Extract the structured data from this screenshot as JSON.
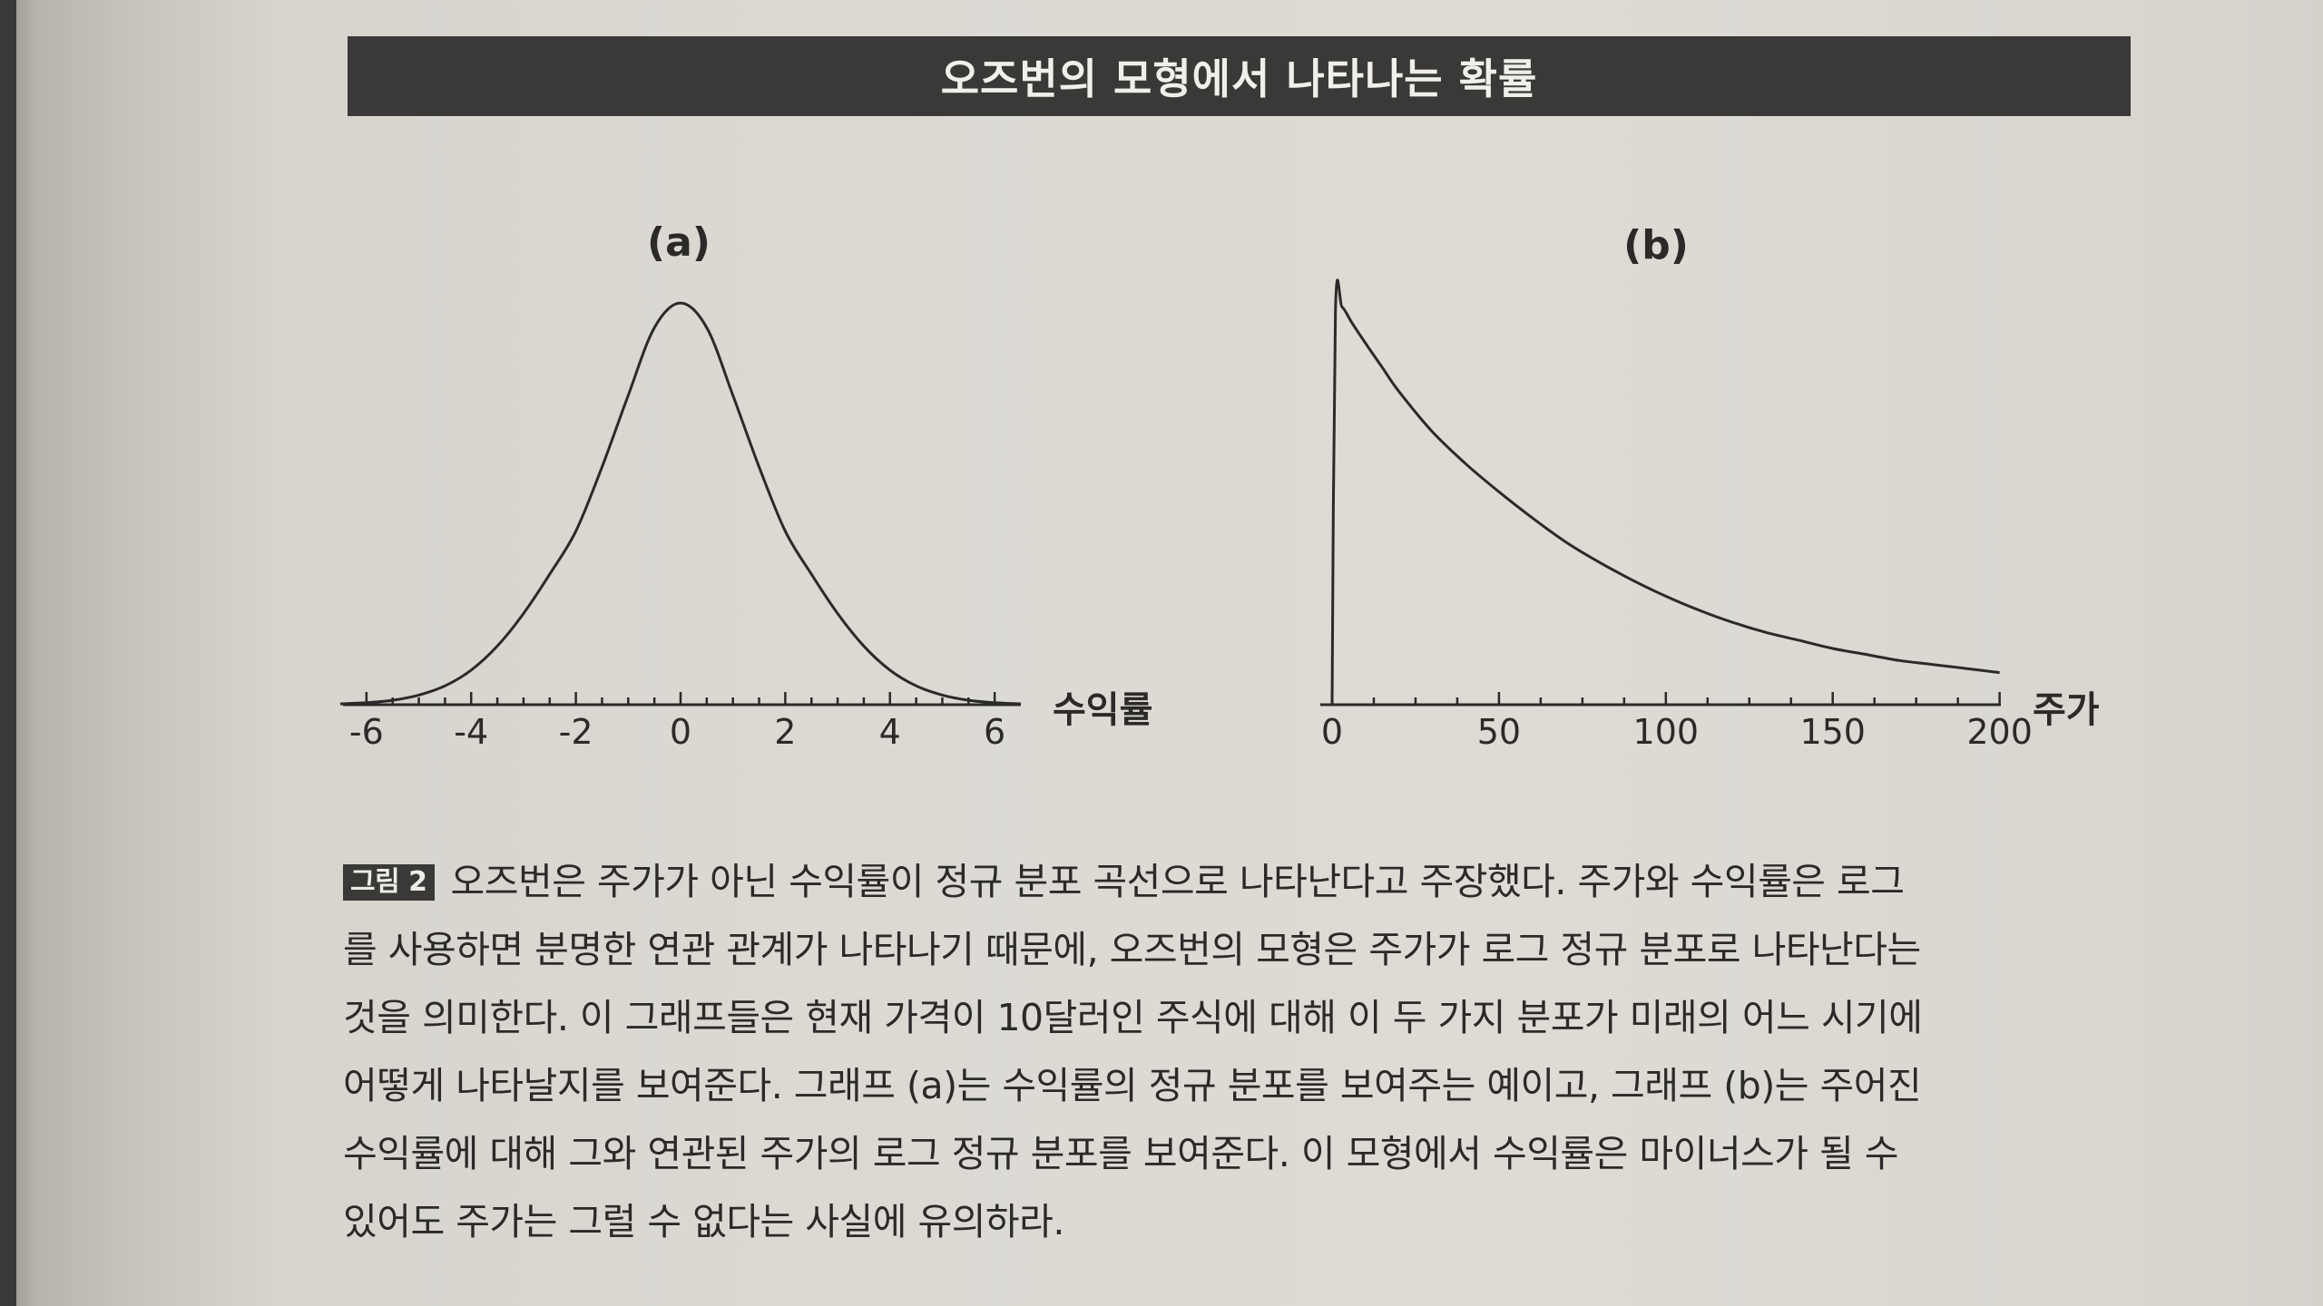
{
  "title": "오즈번의 모형에서 나타나는 확률",
  "chart_data": [
    {
      "type": "line",
      "panel_label": "(a)",
      "xlabel": "수익률",
      "xlim": [
        -6.5,
        6.5
      ],
      "xticks": [
        -6,
        -4,
        -2,
        0,
        2,
        4,
        6
      ],
      "xtick_labels": [
        "-6",
        "-4",
        "-2",
        "0",
        "2",
        "4",
        "6"
      ],
      "x": [
        -6.5,
        -6,
        -5.5,
        -5,
        -4.5,
        -4,
        -3.5,
        -3,
        -2.5,
        -2,
        -1.5,
        -1,
        -0.5,
        0,
        0.5,
        1,
        1.5,
        2,
        2.5,
        3,
        3.5,
        4,
        4.5,
        5,
        5.5,
        6,
        6.5
      ],
      "y": [
        0.002,
        0.005,
        0.011,
        0.024,
        0.047,
        0.086,
        0.146,
        0.227,
        0.325,
        0.432,
        0.592,
        0.77,
        0.939,
        1.0,
        0.939,
        0.77,
        0.592,
        0.432,
        0.325,
        0.227,
        0.146,
        0.086,
        0.047,
        0.024,
        0.011,
        0.005,
        0.002
      ],
      "ylim": [
        0,
        1.05
      ]
    },
    {
      "type": "line",
      "panel_label": "(b)",
      "xlabel": "주가",
      "xlim": [
        0,
        205
      ],
      "xticks": [
        0,
        50,
        100,
        150,
        200
      ],
      "xtick_labels": [
        "0",
        "50",
        "100",
        "150",
        "200"
      ],
      "x": [
        0,
        1,
        3,
        6,
        10,
        15,
        20,
        30,
        40,
        50,
        60,
        70,
        80,
        90,
        100,
        110,
        120,
        130,
        140,
        150,
        160,
        170,
        180,
        190,
        200
      ],
      "y": [
        0,
        0.98,
        0.99,
        0.95,
        0.9,
        0.84,
        0.78,
        0.68,
        0.6,
        0.53,
        0.465,
        0.405,
        0.355,
        0.31,
        0.27,
        0.235,
        0.205,
        0.18,
        0.16,
        0.14,
        0.125,
        0.11,
        0.1,
        0.09,
        0.08
      ],
      "ylim": [
        0,
        1.05
      ]
    }
  ],
  "caption": {
    "badge": "그림 2",
    "lines": [
      "오즈번은 주가가 아닌 수익률이 정규 분포 곡선으로 나타난다고 주장했다. 주가와 수익률은 로그",
      "를 사용하면 분명한 연관 관계가 나타나기 때문에, 오즈번의 모형은 주가가 로그 정규 분포로 나타난다는",
      "것을 의미한다. 이 그래프들은 현재 가격이 10달러인 주식에 대해 이 두 가지 분포가 미래의 어느 시기에",
      "어떻게 나타날지를 보여준다. 그래프 (a)는 수익률의 정규 분포를 보여주는 예이고, 그래프 (b)는 주어진",
      "수익률에 대해 그와 연관된 주가의 로그 정규 분포를 보여준다. 이 모형에서 수익률은 마이너스가 될 수",
      "있어도 주가는 그럴 수 없다는 사실에 유의하라."
    ]
  }
}
